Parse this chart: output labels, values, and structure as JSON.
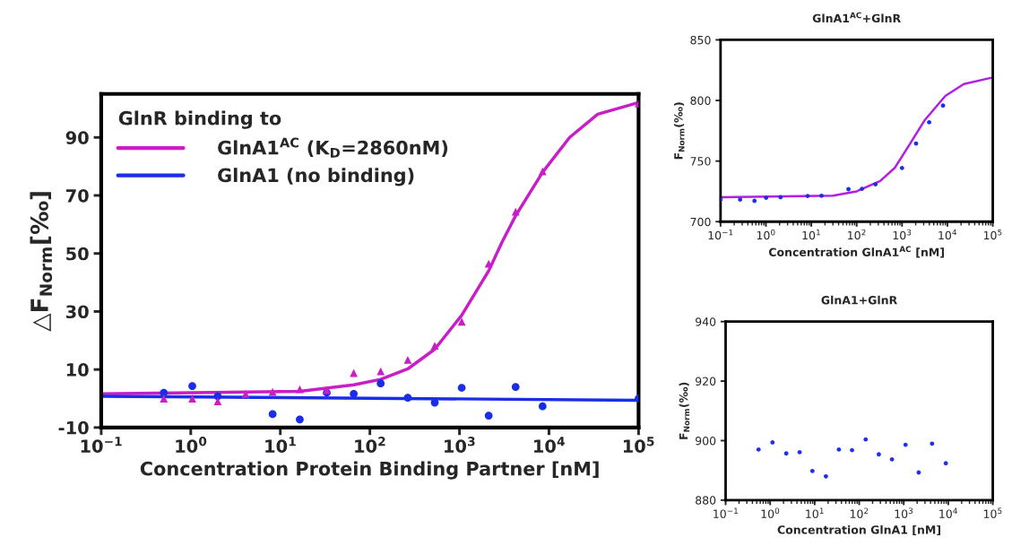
{
  "chart_data": [
    {
      "type": "scatter",
      "xlabel": "Concentration Protein Binding Partner [nM]",
      "ylabel": "△F$_{Norm}$[‰]",
      "legend_title": "GlnR binding to",
      "legend": "top left",
      "log": "x",
      "xlim": [
        0.1,
        100000
      ],
      "xticks": [
        {
          "value": 0.1,
          "label": "10$^{−1}$"
        },
        {
          "value": 1,
          "label": "10$^{0}$"
        },
        {
          "value": 10,
          "label": "10$^{1}$"
        },
        {
          "value": 100,
          "label": "10$^{2}$"
        },
        {
          "value": 1000,
          "label": "10$^{3}$"
        },
        {
          "value": 10000,
          "label": "10$^{4}$"
        },
        {
          "value": 100000,
          "label": "10$^{5}$"
        }
      ],
      "ylim": [
        -10,
        105
      ],
      "yticks": [
        -10,
        10,
        30,
        50,
        70,
        90
      ],
      "series": [
        {
          "name": "GlnA1$^{AC}$ (K$_{D}$=2860nM)",
          "marker": "triangle",
          "color": "#c81ec8",
          "x": [
            0.5,
            1.04,
            2.0,
            4.1,
            8.2,
            16.5,
            33,
            66,
            132,
            265,
            530,
            1060,
            2120,
            4240,
            8480,
            100000
          ],
          "values": [
            0.0,
            0.0,
            -1.0,
            1.6,
            2.3,
            3.2,
            2.9,
            8.8,
            9.4,
            13.3,
            18.2,
            26.5,
            46.5,
            64.4,
            78.3,
            101.7
          ]
        },
        {
          "type": "line",
          "color": "#c81ec8",
          "x": [
            0.1,
            16.5,
            66,
            132,
            265,
            530,
            1060,
            2120,
            3000,
            4240,
            8480,
            17000,
            35000,
            100000
          ],
          "values": [
            1.6,
            2.5,
            4.7,
            6.6,
            10.2,
            17,
            28.7,
            44,
            54,
            63,
            78,
            90,
            98,
            102
          ]
        },
        {
          "name": "GlnA1 (no binding)",
          "marker": "circle",
          "color": "#1a2ee8",
          "x": [
            0.5,
            1.04,
            2.0,
            8.2,
            16.5,
            33,
            66,
            132,
            265,
            530,
            1060,
            2120,
            4240,
            8480,
            100000
          ],
          "values": [
            2.0,
            4.3,
            0.8,
            -5.4,
            -7.2,
            2.0,
            1.6,
            5.2,
            0.3,
            -1.4,
            3.7,
            -5.9,
            4.0,
            -2.7,
            0.0
          ]
        },
        {
          "type": "line",
          "color": "#1a2ee8",
          "x": [
            0.1,
            100000
          ],
          "values": [
            0.8,
            -0.6
          ]
        }
      ]
    },
    {
      "type": "scatter",
      "title": "GlnA1$^{AC}$+GlnR",
      "xlabel": "Concentration GlnA1$^{AC}$ [nM]",
      "ylabel": "F$_{Norm}$(‰)",
      "log": "x",
      "xlim": [
        0.1,
        100000
      ],
      "xticks": [
        {
          "value": 0.1,
          "label": "10$^{−1}$"
        },
        {
          "value": 1,
          "label": "10$^{0}$"
        },
        {
          "value": 10,
          "label": "10$^{1}$"
        },
        {
          "value": 100,
          "label": "10$^{2}$"
        },
        {
          "value": 1000,
          "label": "10$^{3}$"
        },
        {
          "value": 10000,
          "label": "10$^{4}$"
        },
        {
          "value": 100000,
          "label": "10$^{5}$"
        }
      ],
      "ylim": [
        700,
        850
      ],
      "yticks": [
        700,
        750,
        800,
        850
      ],
      "series": [
        {
          "type": "line",
          "color": "#b21ee6",
          "x": [
            0.1,
            30,
            100,
            330,
            700,
            1500,
            3200,
            9000,
            23000,
            100000
          ],
          "values": [
            720.2,
            721.4,
            725,
            733.6,
            744.6,
            764.3,
            784,
            803.7,
            813.5,
            819
          ]
        },
        {
          "marker": "circle",
          "color": "#2030e0",
          "x": [
            0.1,
            0.27,
            0.56,
            1.01,
            2.1,
            8.3,
            16.8,
            66,
            131,
            260,
            1000,
            2040,
            3960,
            8000
          ],
          "values": [
            718.2,
            718.2,
            717.2,
            719.7,
            720.2,
            721.2,
            721.4,
            726.8,
            727.1,
            730.9,
            744.3,
            764.5,
            782,
            795.8
          ]
        }
      ]
    },
    {
      "type": "scatter",
      "title": "GlnA1+GlnR",
      "xlabel": "Concentration GlnA1 [nM]",
      "ylabel": "F$_{Norm}$(‰)",
      "log": "x",
      "xlim": [
        0.1,
        100000
      ],
      "xticks": [
        {
          "value": 0.1,
          "label": "10$^{−1}$"
        },
        {
          "value": 1,
          "label": "10$^{0}$"
        },
        {
          "value": 10,
          "label": "10$^{1}$"
        },
        {
          "value": 100,
          "label": "10$^{2}$"
        },
        {
          "value": 1000,
          "label": "10$^{3}$"
        },
        {
          "value": 10000,
          "label": "10$^{4}$"
        },
        {
          "value": 100000,
          "label": "10$^{5}$"
        }
      ],
      "ylim": [
        880,
        940
      ],
      "yticks": [
        880,
        900,
        920,
        940
      ],
      "series": [
        {
          "marker": "circle",
          "color": "#2030f0",
          "x": [
            0.55,
            1.13,
            2.3,
            4.6,
            8.9,
            17.9,
            35,
            69,
            140,
            276,
            545,
            1100,
            2170,
            4330,
            8820
          ],
          "values": [
            897.0,
            899.4,
            895.7,
            896.1,
            889.8,
            888.0,
            897.0,
            896.8,
            900.4,
            895.4,
            893.7,
            898.6,
            889.3,
            899.0,
            892.4
          ]
        }
      ]
    }
  ]
}
